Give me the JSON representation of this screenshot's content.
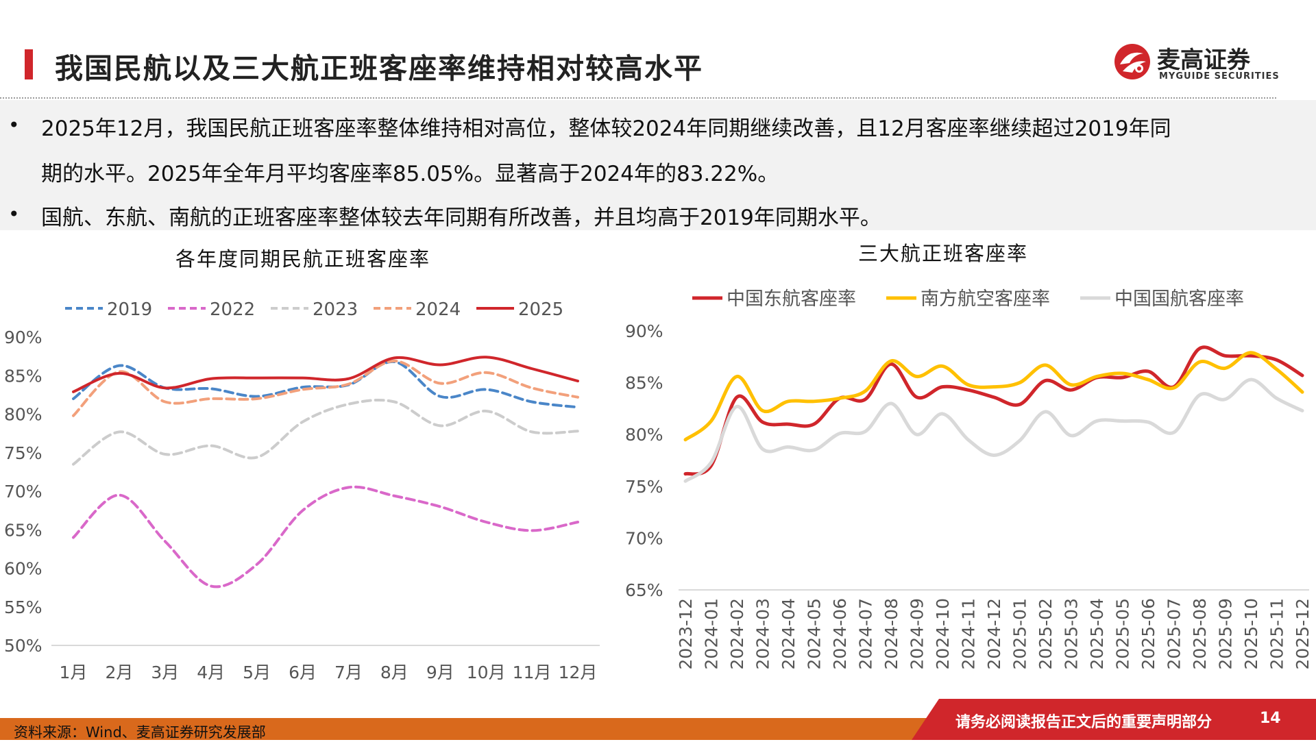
{
  "header": {
    "title": "我国民航以及三大航正班客座率维持相对较高水平",
    "logo_name": "麦高证券",
    "logo_sub": "MYGUIDE SECURITIES",
    "logo_icon": "myguide-logo-icon",
    "accent": "#d0262b"
  },
  "bullets": [
    {
      "line1": "2025年12月，我国民航正班客座率整体维持相对高位，整体较2024年同期继续改善，且12月客座率继续超过2019年同",
      "line2": "期的水平。2025年全年月平均客座率85.05%。显著高于2024年的83.22%。"
    },
    {
      "line1": "国航、东航、南航的正班客座率整体较去年同期有所改善，并且均高于2019年同期水平。"
    }
  ],
  "chart_data": [
    {
      "type": "line",
      "title": "各年度同期民航正班客座率",
      "categories": [
        "1月",
        "2月",
        "3月",
        "4月",
        "5月",
        "6月",
        "7月",
        "8月",
        "9月",
        "10月",
        "11月",
        "12月"
      ],
      "y_ticks": [
        "50%",
        "55%",
        "60%",
        "65%",
        "70%",
        "75%",
        "80%",
        "85%",
        "90%"
      ],
      "ylim": [
        50,
        90
      ],
      "legend_position": "top",
      "grid": false,
      "series": [
        {
          "name": "2019",
          "color": "#4a86c8",
          "dash": true,
          "values": [
            82.0,
            86.3,
            83.4,
            83.3,
            82.3,
            83.5,
            83.8,
            86.8,
            82.3,
            83.2,
            81.6,
            80.9
          ]
        },
        {
          "name": "2022",
          "color": "#d968c9",
          "dash": true,
          "values": [
            64.0,
            69.5,
            63.5,
            57.7,
            60.5,
            67.5,
            70.5,
            69.4,
            68.0,
            66.0,
            64.9,
            66.0
          ]
        },
        {
          "name": "2023",
          "color": "#cccccc",
          "dash": true,
          "values": [
            73.5,
            77.7,
            74.8,
            75.9,
            74.4,
            79.0,
            81.3,
            81.6,
            78.5,
            80.4,
            77.7,
            77.8
          ]
        },
        {
          "name": "2024",
          "color": "#f2a07b",
          "dash": true,
          "values": [
            79.8,
            85.5,
            81.6,
            82.0,
            82.0,
            83.2,
            83.9,
            86.9,
            84.0,
            85.4,
            83.4,
            82.2
          ]
        },
        {
          "name": "2025",
          "color": "#d0262b",
          "dash": false,
          "values": [
            82.9,
            85.3,
            83.4,
            84.6,
            84.7,
            84.7,
            84.6,
            87.3,
            86.4,
            87.4,
            85.9,
            84.3
          ]
        }
      ]
    },
    {
      "type": "line",
      "title": "三大航正班客座率",
      "categories": [
        "2023-12",
        "2024-01",
        "2024-02",
        "2024-03",
        "2024-04",
        "2024-05",
        "2024-06",
        "2024-07",
        "2024-08",
        "2024-09",
        "2024-10",
        "2024-11",
        "2024-12",
        "2025-01",
        "2025-02",
        "2025-03",
        "2025-04",
        "2025-05",
        "2025-06",
        "2025-07",
        "2025-08",
        "2025-09",
        "2025-10",
        "2025-11",
        "2025-12"
      ],
      "y_ticks": [
        "65%",
        "70%",
        "75%",
        "80%",
        "85%",
        "90%"
      ],
      "ylim": [
        65,
        90
      ],
      "legend_position": "top",
      "grid": false,
      "series": [
        {
          "name": "中国东航客座率",
          "color": "#d0262b",
          "dash": false,
          "values": [
            76.2,
            77.0,
            83.6,
            81.2,
            81.0,
            81.0,
            83.5,
            83.4,
            86.8,
            83.6,
            84.6,
            84.3,
            83.6,
            82.9,
            85.2,
            84.3,
            85.5,
            85.5,
            86.1,
            84.6,
            88.3,
            87.6,
            87.6,
            87.2,
            85.7
          ]
        },
        {
          "name": "南方航空客座率",
          "color": "#ffc000",
          "dash": false,
          "values": [
            79.5,
            81.3,
            85.6,
            82.3,
            83.2,
            83.2,
            83.5,
            84.2,
            87.1,
            85.6,
            86.6,
            84.8,
            84.6,
            85.0,
            86.7,
            84.8,
            85.6,
            85.9,
            85.3,
            84.5,
            87.0,
            86.4,
            87.9,
            86.3,
            84.1
          ]
        },
        {
          "name": "中国国航客座率",
          "color": "#d9d9d9",
          "dash": false,
          "values": [
            75.5,
            77.3,
            82.7,
            78.6,
            78.8,
            78.5,
            80.1,
            80.3,
            83.0,
            80.0,
            82.0,
            79.5,
            78.0,
            79.4,
            82.2,
            79.9,
            81.3,
            81.3,
            81.2,
            80.2,
            83.8,
            83.4,
            85.3,
            83.5,
            82.3
          ]
        }
      ]
    }
  ],
  "footer": {
    "source": "资料来源：Wind、麦高证券研究发展部",
    "disclaimer": "请务必阅读报告正文后的重要声明部分",
    "page": "14",
    "band_color": "#d9691c",
    "disclaimer_bg": "#d0262b"
  }
}
